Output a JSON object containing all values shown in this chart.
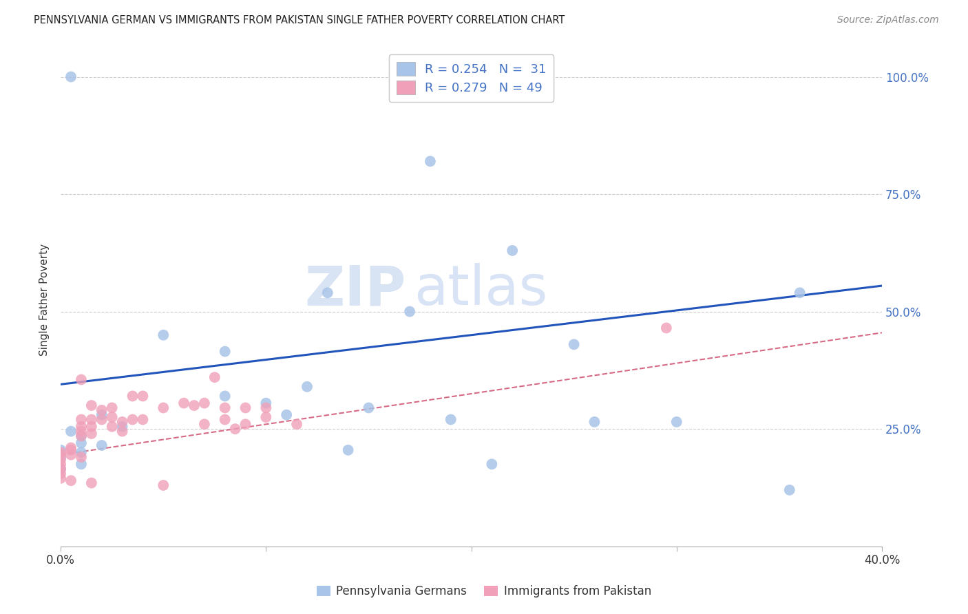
{
  "title": "PENNSYLVANIA GERMAN VS IMMIGRANTS FROM PAKISTAN SINGLE FATHER POVERTY CORRELATION CHART",
  "source": "Source: ZipAtlas.com",
  "ylabel": "Single Father Poverty",
  "xlim": [
    0.0,
    0.4
  ],
  "ylim": [
    0.0,
    1.05
  ],
  "legend_label_blue": "Pennsylvania Germans",
  "legend_label_pink": "Immigrants from Pakistan",
  "blue_color": "#a8c4e8",
  "pink_color": "#f0a0b8",
  "line_blue_color": "#2255bb",
  "line_pink_color": "#cc4466",
  "watermark_zip": "ZIP",
  "watermark_atlas": "atlas",
  "blue_scatter_x": [
    0.005,
    0.03,
    0.0,
    0.01,
    0.01,
    0.02,
    0.005,
    0.01,
    0.0,
    0.01,
    0.02,
    0.0,
    0.05,
    0.1,
    0.08,
    0.11,
    0.15,
    0.12,
    0.19,
    0.21,
    0.25,
    0.3,
    0.18,
    0.22,
    0.13,
    0.17,
    0.36,
    0.355,
    0.26,
    0.14,
    0.08
  ],
  "blue_scatter_y": [
    1.0,
    0.255,
    0.205,
    0.2,
    0.22,
    0.28,
    0.245,
    0.235,
    0.19,
    0.175,
    0.215,
    0.165,
    0.45,
    0.305,
    0.415,
    0.28,
    0.295,
    0.34,
    0.27,
    0.175,
    0.43,
    0.265,
    0.82,
    0.63,
    0.54,
    0.5,
    0.54,
    0.12,
    0.265,
    0.205,
    0.32
  ],
  "pink_scatter_x": [
    0.0,
    0.0,
    0.0,
    0.0,
    0.0,
    0.0,
    0.0,
    0.005,
    0.005,
    0.005,
    0.005,
    0.01,
    0.01,
    0.01,
    0.01,
    0.01,
    0.01,
    0.015,
    0.015,
    0.015,
    0.015,
    0.015,
    0.02,
    0.02,
    0.025,
    0.025,
    0.025,
    0.03,
    0.03,
    0.035,
    0.035,
    0.04,
    0.04,
    0.05,
    0.05,
    0.06,
    0.065,
    0.07,
    0.07,
    0.075,
    0.08,
    0.08,
    0.085,
    0.09,
    0.09,
    0.1,
    0.1,
    0.115,
    0.295
  ],
  "pink_scatter_y": [
    0.195,
    0.185,
    0.175,
    0.165,
    0.155,
    0.145,
    0.2,
    0.21,
    0.205,
    0.195,
    0.14,
    0.355,
    0.27,
    0.255,
    0.245,
    0.235,
    0.19,
    0.3,
    0.27,
    0.255,
    0.24,
    0.135,
    0.29,
    0.27,
    0.295,
    0.275,
    0.255,
    0.265,
    0.245,
    0.32,
    0.27,
    0.32,
    0.27,
    0.295,
    0.13,
    0.305,
    0.3,
    0.305,
    0.26,
    0.36,
    0.295,
    0.27,
    0.25,
    0.295,
    0.26,
    0.295,
    0.275,
    0.26,
    0.465
  ],
  "blue_line_x0": 0.0,
  "blue_line_x1": 0.4,
  "blue_line_y0": 0.345,
  "blue_line_y1": 0.555,
  "pink_line_x0": 0.0,
  "pink_line_x1": 0.4,
  "pink_line_y0": 0.195,
  "pink_line_y1": 0.455
}
